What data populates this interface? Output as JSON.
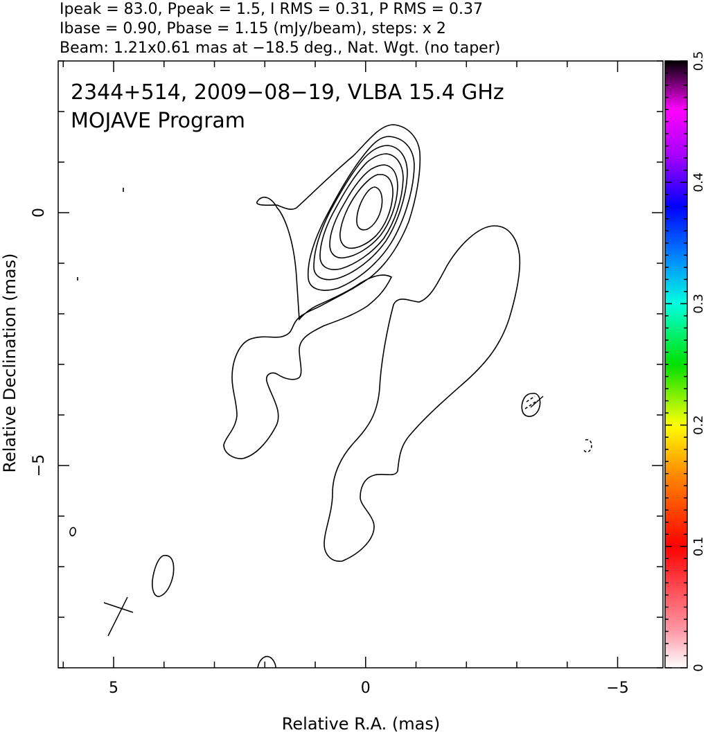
{
  "header": {
    "line1": "Ipeak = 83.0, Ppeak = 1.5, I RMS = 0.31, P RMS = 0.37",
    "line2": "Ibase = 0.90, Pbase = 1.15 (mJy/beam), steps: x 2",
    "line3": "Beam: 1.21x0.61 mas at −18.5 deg., Nat. Wgt. (no taper)"
  },
  "chart_data": {
    "type": "contour",
    "title_line1": "2344+514, 2009−08−19, VLBA 15.4 GHz",
    "title_line2": "MOJAVE Program",
    "xlabel": "Relative R.A. (mas)",
    "ylabel": "Relative Declination (mas)",
    "xlim": [
      6.1,
      -5.9
    ],
    "ylim": [
      -9.0,
      3.0
    ],
    "x_ticks": [
      {
        "v": 5,
        "label": "5"
      },
      {
        "v": 0,
        "label": "0"
      },
      {
        "v": -5,
        "label": "−5"
      }
    ],
    "y_ticks": [
      {
        "v": 0,
        "label": "0"
      },
      {
        "v": -5,
        "label": "−5"
      }
    ],
    "contour_levels_mJy_per_beam": [
      0.9,
      1.8,
      3.6,
      7.2,
      14.4,
      28.8,
      57.6
    ],
    "beam": {
      "major_mas": 1.21,
      "minor_mas": 0.61,
      "pa_deg": -18.5,
      "center": [
        4.9,
        -7.9
      ]
    },
    "colorbar": {
      "min": 0,
      "max": 0.5,
      "ticks": [
        {
          "v": 0,
          "label": "0"
        },
        {
          "v": 0.1,
          "label": "0.1"
        },
        {
          "v": 0.2,
          "label": "0.2"
        },
        {
          "v": 0.3,
          "label": "0.3"
        },
        {
          "v": 0.4,
          "label": "0.4"
        },
        {
          "v": 0.5,
          "label": "0.5"
        }
      ],
      "stops": [
        "#ffffff",
        "#ff9aa8",
        "#ff0000",
        "#ff8c00",
        "#ffff00",
        "#00e000",
        "#00ffe0",
        "#0080ff",
        "#0000ff",
        "#a000ff",
        "#ff00ff",
        "#000000"
      ]
    }
  }
}
